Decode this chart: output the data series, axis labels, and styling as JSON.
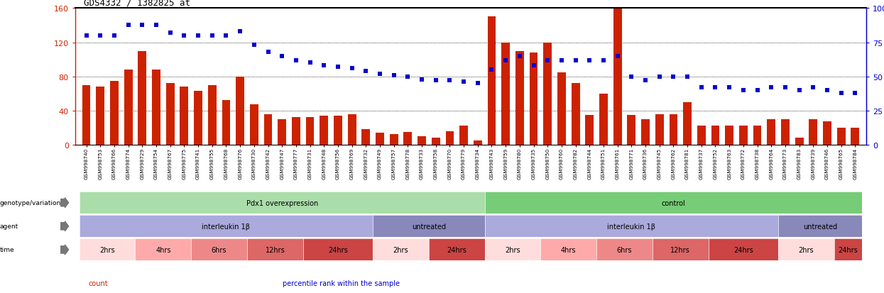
{
  "title": "GDS4332 / 1382825_at",
  "samples": [
    "GSM998740",
    "GSM998753",
    "GSM998766",
    "GSM998774",
    "GSM998729",
    "GSM998754",
    "GSM998767",
    "GSM998775",
    "GSM998741",
    "GSM998755",
    "GSM998768",
    "GSM998776",
    "GSM998730",
    "GSM998742",
    "GSM998747",
    "GSM998777",
    "GSM998731",
    "GSM998748",
    "GSM998756",
    "GSM998769",
    "GSM998732",
    "GSM998749",
    "GSM998757",
    "GSM998778",
    "GSM998733",
    "GSM998758",
    "GSM998770",
    "GSM998779",
    "GSM998734",
    "GSM998743",
    "GSM998759",
    "GSM998780",
    "GSM998735",
    "GSM998750",
    "GSM998760",
    "GSM998782",
    "GSM998744",
    "GSM998751",
    "GSM998761",
    "GSM998771",
    "GSM998736",
    "GSM998745",
    "GSM998762",
    "GSM998781",
    "GSM998737",
    "GSM998752",
    "GSM998763",
    "GSM998772",
    "GSM998738",
    "GSM998764",
    "GSM998773",
    "GSM998783",
    "GSM998739",
    "GSM998746",
    "GSM998765",
    "GSM998784"
  ],
  "counts": [
    70,
    68,
    75,
    88,
    110,
    88,
    72,
    68,
    63,
    70,
    52,
    80,
    47,
    36,
    30,
    32,
    32,
    34,
    34,
    36,
    18,
    14,
    12,
    15,
    10,
    8,
    16,
    22,
    5,
    150,
    120,
    110,
    108,
    120,
    85,
    72,
    35,
    60,
    165,
    35,
    30,
    36,
    36,
    50,
    22,
    22,
    22,
    22,
    22,
    30,
    30,
    8,
    30,
    27,
    20,
    20
  ],
  "percentiles": [
    80,
    80,
    80,
    88,
    88,
    88,
    82,
    80,
    80,
    80,
    80,
    83,
    73,
    68,
    65,
    62,
    60,
    58,
    57,
    56,
    54,
    52,
    51,
    50,
    48,
    47,
    47,
    46,
    45,
    55,
    62,
    65,
    58,
    62,
    62,
    62,
    62,
    62,
    65,
    50,
    47,
    50,
    50,
    50,
    42,
    42,
    42,
    40,
    40,
    42,
    42,
    40,
    42,
    40,
    38,
    38
  ],
  "bar_color": "#cc2200",
  "percentile_color": "#0000cc",
  "genotype_groups": [
    {
      "label": "Pdx1 overexpression",
      "start": 0,
      "end": 28,
      "color": "#aaddaa"
    },
    {
      "label": "control",
      "start": 29,
      "end": 55,
      "color": "#77cc77"
    }
  ],
  "agent_groups": [
    {
      "label": "interleukin 1β",
      "start": 0,
      "end": 20,
      "color": "#aaaadd"
    },
    {
      "label": "untreated",
      "start": 21,
      "end": 28,
      "color": "#8888bb"
    },
    {
      "label": "interleukin 1β",
      "start": 29,
      "end": 49,
      "color": "#aaaadd"
    },
    {
      "label": "untreated",
      "start": 50,
      "end": 55,
      "color": "#8888bb"
    }
  ],
  "time_groups": [
    {
      "label": "2hrs",
      "start": 0,
      "end": 3,
      "color": "#ffdddd"
    },
    {
      "label": "4hrs",
      "start": 4,
      "end": 7,
      "color": "#ffaaaa"
    },
    {
      "label": "6hrs",
      "start": 8,
      "end": 11,
      "color": "#ee8888"
    },
    {
      "label": "12hrs",
      "start": 12,
      "end": 15,
      "color": "#dd6666"
    },
    {
      "label": "24hrs",
      "start": 16,
      "end": 20,
      "color": "#cc4444"
    },
    {
      "label": "2hrs",
      "start": 21,
      "end": 24,
      "color": "#ffdddd"
    },
    {
      "label": "24hrs",
      "start": 25,
      "end": 28,
      "color": "#cc4444"
    },
    {
      "label": "2hrs",
      "start": 29,
      "end": 32,
      "color": "#ffdddd"
    },
    {
      "label": "4hrs",
      "start": 33,
      "end": 36,
      "color": "#ffaaaa"
    },
    {
      "label": "6hrs",
      "start": 37,
      "end": 40,
      "color": "#ee8888"
    },
    {
      "label": "12hrs",
      "start": 41,
      "end": 44,
      "color": "#dd6666"
    },
    {
      "label": "24hrs",
      "start": 45,
      "end": 49,
      "color": "#cc4444"
    },
    {
      "label": "2hrs",
      "start": 50,
      "end": 53,
      "color": "#ffdddd"
    },
    {
      "label": "24hrs",
      "start": 54,
      "end": 55,
      "color": "#cc4444"
    }
  ],
  "legend_items": [
    {
      "label": "count",
      "color": "#cc2200"
    },
    {
      "label": "percentile rank within the sample",
      "color": "#0000cc"
    }
  ]
}
